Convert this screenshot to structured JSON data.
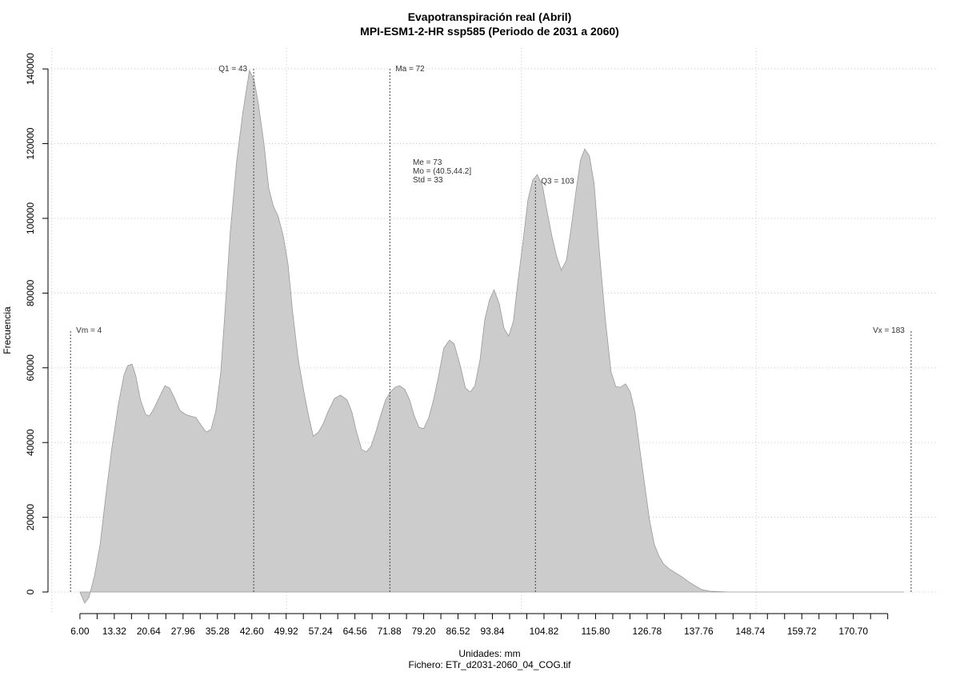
{
  "chart_data": {
    "type": "area",
    "title": [
      "Evapotranspiración real (Abril)",
      "MPI-ESM1-2-HR ssp585 (Periodo de 2031 a 2060)"
    ],
    "xlabel": "Unidades: mm",
    "caption": "Fichero: ETr_d2031-2060_04_COG.tif",
    "ylabel": "Frecuencia",
    "color": "#cccccc",
    "x": [
      6.0,
      7.0,
      7.9,
      9.1,
      10.3,
      11.5,
      12.8,
      14.2,
      15.4,
      16.2,
      17.1,
      17.9,
      18.9,
      20.0,
      20.8,
      21.8,
      23.0,
      24.1,
      25.1,
      26.1,
      27.3,
      28.5,
      29.5,
      30.7,
      31.9,
      32.9,
      33.9,
      34.9,
      36.0,
      37.0,
      38.0,
      39.4,
      40.7,
      42.1,
      43.1,
      44.0,
      45.2,
      46.2,
      47.2,
      48.2,
      49.3,
      50.3,
      51.3,
      52.5,
      53.7,
      54.7,
      55.7,
      56.8,
      57.8,
      58.8,
      60.2,
      61.5,
      62.9,
      63.9,
      64.9,
      66.0,
      67.0,
      68.0,
      69.0,
      70.0,
      71.1,
      72.1,
      73.1,
      74.1,
      75.2,
      76.2,
      77.2,
      78.2,
      79.2,
      80.3,
      81.3,
      82.3,
      83.5,
      84.7,
      85.7,
      86.9,
      88.1,
      89.1,
      90.1,
      91.2,
      92.2,
      93.2,
      94.2,
      95.3,
      96.3,
      97.3,
      98.3,
      99.3,
      100.4,
      101.4,
      102.4,
      103.4,
      104.5,
      105.5,
      106.5,
      107.5,
      108.5,
      109.6,
      110.6,
      111.6,
      112.6,
      113.5,
      114.5,
      115.5,
      116.7,
      117.9,
      119.1,
      120.1,
      121.1,
      122.2,
      123.2,
      124.2,
      125.2,
      126.3,
      127.3,
      128.3,
      129.3,
      130.3,
      131.7,
      133.1,
      134.4,
      135.8,
      137.2,
      138.5,
      140.2,
      144.0,
      181.4
    ],
    "values": [
      0,
      -3000,
      -1500,
      4300,
      12800,
      25700,
      38500,
      50300,
      58200,
      60600,
      61000,
      57800,
      51400,
      47500,
      47100,
      49200,
      52400,
      55200,
      54600,
      52000,
      48600,
      47500,
      47100,
      46700,
      44500,
      42800,
      43500,
      48200,
      58900,
      77100,
      96300,
      115600,
      128400,
      139600,
      137000,
      130600,
      119900,
      108100,
      103200,
      100600,
      95300,
      87800,
      74900,
      62100,
      53500,
      47100,
      41700,
      42800,
      45000,
      48200,
      51800,
      52700,
      51400,
      48200,
      42800,
      38100,
      37500,
      39000,
      42800,
      47100,
      51400,
      53500,
      54800,
      55200,
      54200,
      51400,
      47100,
      44100,
      43700,
      46700,
      51400,
      57400,
      65300,
      67400,
      66400,
      61000,
      54600,
      53500,
      55200,
      62100,
      72800,
      78100,
      80900,
      77100,
      70600,
      68500,
      72400,
      83500,
      94200,
      104900,
      110200,
      111700,
      108700,
      101700,
      95300,
      89900,
      86100,
      88800,
      97400,
      107000,
      115600,
      118600,
      116700,
      109200,
      89900,
      72800,
      58900,
      55000,
      54800,
      55700,
      53500,
      48200,
      38500,
      28300,
      19300,
      12800,
      9600,
      7500,
      6000,
      4900,
      3900,
      2600,
      1500,
      600,
      200,
      0,
      0
    ],
    "xlim": [
      -0.8,
      188.3
    ],
    "ylim": [
      -6000,
      145600
    ],
    "xticks": [
      {
        "value": 6,
        "label": "6.00"
      },
      13.32,
      20.64,
      27.96,
      35.28,
      {
        "value": 42.6,
        "label": "42.60"
      },
      49.92,
      57.24,
      64.56,
      71.88,
      {
        "value": 79.2,
        "label": "79.20"
      },
      86.52,
      93.84,
      104.82,
      {
        "value": 115.8,
        "label": "115.80"
      },
      126.78,
      137.76,
      148.74,
      159.72,
      {
        "value": 170.7,
        "label": "170.70"
      }
    ],
    "xtick_marks": [
      6,
      9.66,
      13.32,
      16.98,
      20.64,
      24.3,
      27.96,
      31.62,
      35.28,
      38.94,
      42.6,
      46.26,
      49.92,
      53.58,
      57.24,
      60.9,
      64.56,
      68.22,
      71.88,
      75.54,
      79.2,
      82.86,
      86.52,
      90.18,
      93.84,
      97.5,
      101.16,
      104.82,
      108.48,
      112.14,
      115.8,
      119.46,
      123.12,
      126.78,
      130.44,
      134.1,
      137.76,
      141.42,
      145.08,
      148.74,
      152.4,
      156.06,
      159.72,
      163.38,
      167.04,
      170.7,
      174.36,
      178.02
    ],
    "xgrid": [
      0,
      50,
      100,
      150
    ],
    "yticks": [
      0,
      20000,
      40000,
      60000,
      80000,
      100000,
      120000,
      140000
    ],
    "grid": true,
    "annotations": [
      {
        "text": "Vm = 4",
        "x": 4,
        "y": 70000,
        "anchor": "start"
      },
      {
        "text": "Q1 = 43",
        "x": 43,
        "y": 140000,
        "anchor": "end"
      },
      {
        "text": "Ma = 72",
        "x": 72,
        "y": 140000,
        "anchor": "start"
      },
      {
        "text": "Q3 = 103",
        "x": 103,
        "y": 110000,
        "anchor": "start"
      },
      {
        "text": "Vx = 183",
        "x": 183,
        "y": 70000,
        "anchor": "end"
      }
    ],
    "stats": [
      "Me = 73",
      "Mo = (40.5,44.2]",
      "Std = 33"
    ]
  }
}
